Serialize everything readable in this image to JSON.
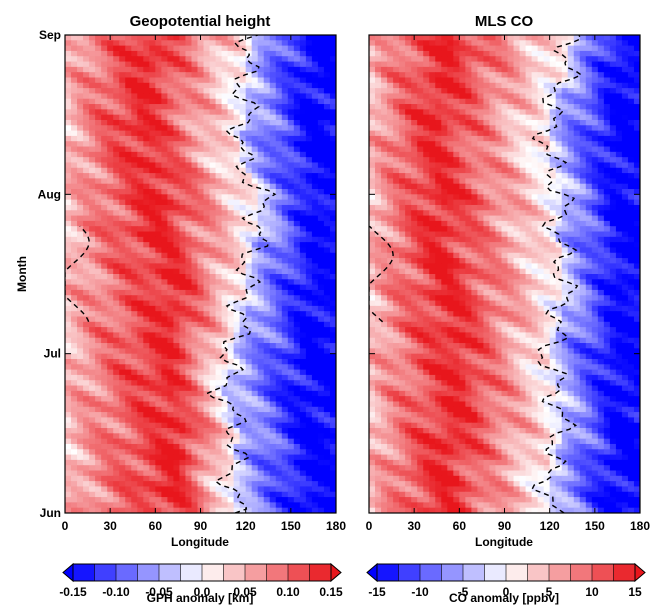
{
  "chart_data": [
    {
      "type": "heatmap",
      "title": "Geopotential height",
      "xlabel": "Longitude",
      "ylabel": "Month",
      "xlim": [
        0,
        180
      ],
      "x_ticks": [
        "0",
        "30",
        "60",
        "90",
        "120",
        "150",
        "180"
      ],
      "y_ticks": [
        "Jun",
        "Jul",
        "Aug",
        "Sep"
      ],
      "colorbar": {
        "label": "GPH anomaly [km]",
        "ticks": [
          "-0.15",
          "-0.10",
          "-0.05",
          "0.0",
          "0.05",
          "0.10",
          "0.15"
        ],
        "range": [
          -0.15,
          0.15
        ],
        "colors": {
          "low": "#0000ff",
          "mid": "#ffffff",
          "high": "#e8161c"
        }
      },
      "zero_contour": "dashed",
      "profile": {
        "month_positions": [
          0,
          0.25,
          0.5,
          0.75,
          1.0,
          1.25,
          1.5,
          1.75,
          2.0,
          2.25,
          2.5,
          2.75,
          3.0
        ],
        "peak_longitude": [
          75,
          72,
          78,
          70,
          68,
          72,
          75,
          62,
          65,
          55,
          50,
          55,
          60
        ],
        "zero_crossing_longitude": [
          113,
          110,
          115,
          105,
          110,
          118,
          120,
          128,
          130,
          115,
          120,
          118,
          125
        ]
      }
    },
    {
      "type": "heatmap",
      "title": "MLS CO",
      "xlabel": "Longitude",
      "ylabel": "",
      "xlim": [
        0,
        180
      ],
      "x_ticks": [
        "0",
        "30",
        "60",
        "90",
        "120",
        "150",
        "180"
      ],
      "y_ticks": [
        "Jun",
        "Jul",
        "Aug",
        "Sep"
      ],
      "colorbar": {
        "label": "CO anomaly [ppbv]",
        "ticks": [
          "-15",
          "-10",
          "-5",
          "0",
          "5",
          "10",
          "15"
        ],
        "range": [
          -15,
          15
        ],
        "colors": {
          "low": "#0000ff",
          "mid": "#ffffff",
          "high": "#e8161c"
        }
      },
      "zero_contour": "dashed",
      "profile": {
        "month_positions": [
          0,
          0.25,
          0.5,
          0.75,
          1.0,
          1.25,
          1.5,
          1.75,
          2.0,
          2.25,
          2.5,
          2.75,
          3.0
        ],
        "peak_longitude": [
          55,
          48,
          55,
          60,
          58,
          55,
          50,
          45,
          50,
          42,
          45,
          50,
          55
        ],
        "zero_crossing_longitude": [
          120,
          118,
          128,
          125,
          118,
          128,
          130,
          125,
          128,
          118,
          120,
          130,
          135
        ]
      }
    }
  ]
}
